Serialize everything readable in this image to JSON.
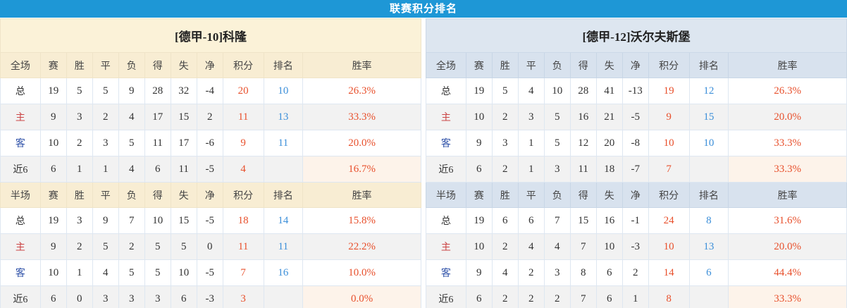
{
  "title_bar": {
    "label": "联赛积分排名"
  },
  "columns": {
    "stat_headers": [
      "赛",
      "胜",
      "平",
      "负",
      "得",
      "失",
      "净",
      "积分",
      "排名",
      "胜率"
    ]
  },
  "layout_hints": {
    "col_widths": [
      "9.5%",
      "6.2%",
      "6.2%",
      "6.2%",
      "6.2%",
      "6.2%",
      "6.2%",
      "6.2%",
      "9.7%",
      "9.3%",
      "28.1%"
    ]
  },
  "colors": {
    "accent_bar": "#1E97D6",
    "left_theme_title": "#FBF2D8",
    "left_theme_header": "#F8EDD3",
    "right_theme_title": "#DDE6F0",
    "right_theme_header": "#D8E2EE",
    "row_alt": "#F2F2F2",
    "recent_winrate_highlight": "#FDF3EA",
    "points_winrate_text": "#E8502C",
    "rank_text": "#3C8FD9",
    "home_label": "#CB4545",
    "away_label": "#3355AA"
  },
  "teams": [
    {
      "name": "[德甲-10]科隆",
      "theme": "cream",
      "sections": [
        {
          "header": "全场",
          "rows": [
            {
              "label": "总",
              "label_style": "dark",
              "stats": [
                "19",
                "5",
                "5",
                "9",
                "28",
                "32",
                "-4"
              ],
              "points": "20",
              "rank": "10",
              "win_rate": "26.3%",
              "highlight_win_rate": false
            },
            {
              "label": "主",
              "label_style": "red",
              "stats": [
                "9",
                "3",
                "2",
                "4",
                "17",
                "15",
                "2"
              ],
              "points": "11",
              "rank": "13",
              "win_rate": "33.3%",
              "highlight_win_rate": false
            },
            {
              "label": "客",
              "label_style": "blue",
              "stats": [
                "10",
                "2",
                "3",
                "5",
                "11",
                "17",
                "-6"
              ],
              "points": "9",
              "rank": "11",
              "win_rate": "20.0%",
              "highlight_win_rate": false
            },
            {
              "label": "近6",
              "label_style": "dark",
              "stats": [
                "6",
                "1",
                "1",
                "4",
                "6",
                "11",
                "-5"
              ],
              "points": "4",
              "rank": "",
              "win_rate": "16.7%",
              "highlight_win_rate": true
            }
          ]
        },
        {
          "header": "半场",
          "rows": [
            {
              "label": "总",
              "label_style": "dark",
              "stats": [
                "19",
                "3",
                "9",
                "7",
                "10",
                "15",
                "-5"
              ],
              "points": "18",
              "rank": "14",
              "win_rate": "15.8%",
              "highlight_win_rate": false
            },
            {
              "label": "主",
              "label_style": "red",
              "stats": [
                "9",
                "2",
                "5",
                "2",
                "5",
                "5",
                "0"
              ],
              "points": "11",
              "rank": "11",
              "win_rate": "22.2%",
              "highlight_win_rate": false
            },
            {
              "label": "客",
              "label_style": "blue",
              "stats": [
                "10",
                "1",
                "4",
                "5",
                "5",
                "10",
                "-5"
              ],
              "points": "7",
              "rank": "16",
              "win_rate": "10.0%",
              "highlight_win_rate": false
            },
            {
              "label": "近6",
              "label_style": "dark",
              "stats": [
                "6",
                "0",
                "3",
                "3",
                "3",
                "6",
                "-3"
              ],
              "points": "3",
              "rank": "",
              "win_rate": "0.0%",
              "highlight_win_rate": true
            }
          ]
        }
      ]
    },
    {
      "name": "[德甲-12]沃尔夫斯堡",
      "theme": "blue",
      "sections": [
        {
          "header": "全场",
          "rows": [
            {
              "label": "总",
              "label_style": "dark",
              "stats": [
                "19",
                "5",
                "4",
                "10",
                "28",
                "41",
                "-13"
              ],
              "points": "19",
              "rank": "12",
              "win_rate": "26.3%",
              "highlight_win_rate": false
            },
            {
              "label": "主",
              "label_style": "red",
              "stats": [
                "10",
                "2",
                "3",
                "5",
                "16",
                "21",
                "-5"
              ],
              "points": "9",
              "rank": "15",
              "win_rate": "20.0%",
              "highlight_win_rate": false
            },
            {
              "label": "客",
              "label_style": "blue",
              "stats": [
                "9",
                "3",
                "1",
                "5",
                "12",
                "20",
                "-8"
              ],
              "points": "10",
              "rank": "10",
              "win_rate": "33.3%",
              "highlight_win_rate": false
            },
            {
              "label": "近6",
              "label_style": "dark",
              "stats": [
                "6",
                "2",
                "1",
                "3",
                "11",
                "18",
                "-7"
              ],
              "points": "7",
              "rank": "",
              "win_rate": "33.3%",
              "highlight_win_rate": true
            }
          ]
        },
        {
          "header": "半场",
          "rows": [
            {
              "label": "总",
              "label_style": "dark",
              "stats": [
                "19",
                "6",
                "6",
                "7",
                "15",
                "16",
                "-1"
              ],
              "points": "24",
              "rank": "8",
              "win_rate": "31.6%",
              "highlight_win_rate": false
            },
            {
              "label": "主",
              "label_style": "red",
              "stats": [
                "10",
                "2",
                "4",
                "4",
                "7",
                "10",
                "-3"
              ],
              "points": "10",
              "rank": "13",
              "win_rate": "20.0%",
              "highlight_win_rate": false
            },
            {
              "label": "客",
              "label_style": "blue",
              "stats": [
                "9",
                "4",
                "2",
                "3",
                "8",
                "6",
                "2"
              ],
              "points": "14",
              "rank": "6",
              "win_rate": "44.4%",
              "highlight_win_rate": false
            },
            {
              "label": "近6",
              "label_style": "dark",
              "stats": [
                "6",
                "2",
                "2",
                "2",
                "7",
                "6",
                "1"
              ],
              "points": "8",
              "rank": "",
              "win_rate": "33.3%",
              "highlight_win_rate": true
            }
          ]
        }
      ]
    }
  ]
}
